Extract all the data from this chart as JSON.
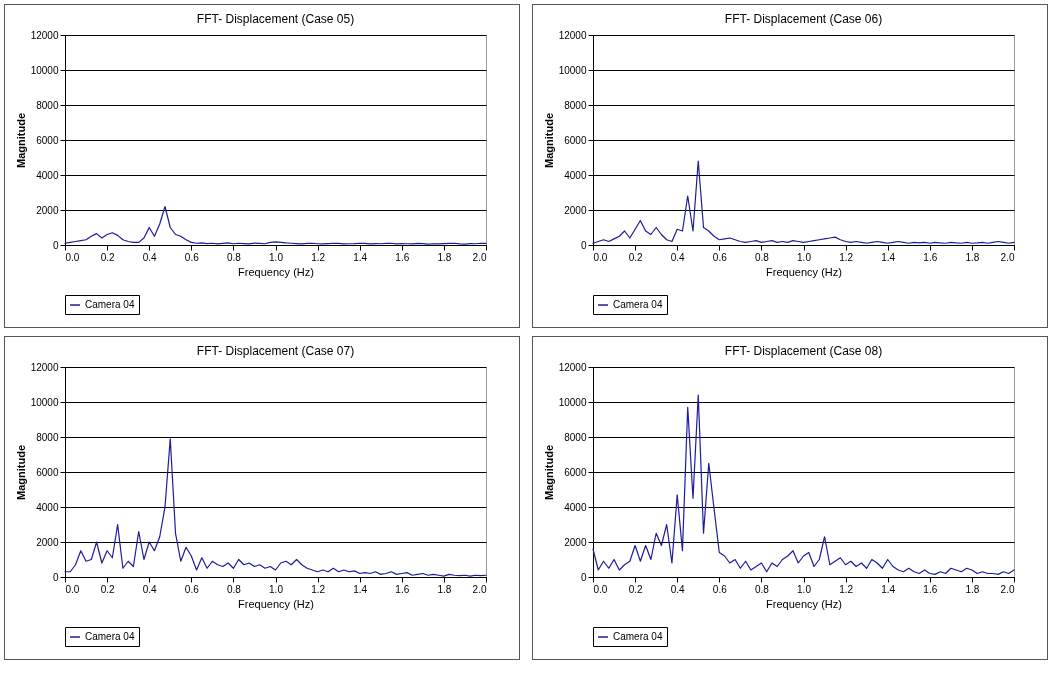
{
  "chart_data": [
    {
      "type": "line",
      "title": "FFT- Displacement (Case 05)",
      "xlabel": "Frequency (Hz)",
      "ylabel": "Magnitude",
      "xlim": [
        0,
        2
      ],
      "ylim": [
        0,
        12000
      ],
      "xticks": [
        {
          "value": 0,
          "label": "0.0"
        },
        0.2,
        0.4,
        0.6,
        0.8,
        {
          "value": 1,
          "label": "1.0"
        },
        1.2,
        1.4,
        1.6,
        1.8,
        {
          "value": 2,
          "label": "2.0"
        }
      ],
      "yticks": [
        0,
        2000,
        4000,
        6000,
        8000,
        10000,
        12000
      ],
      "grid": "y",
      "legend": "bottom",
      "marker": "none",
      "line_style": "solid",
      "x": [
        0,
        0.025,
        0.05,
        0.075,
        0.1,
        0.125,
        0.15,
        0.175,
        0.2,
        0.225,
        0.25,
        0.275,
        0.3,
        0.325,
        0.35,
        0.375,
        0.4,
        0.425,
        0.45,
        0.475,
        0.5,
        0.525,
        0.55,
        0.575,
        0.6,
        0.625,
        0.65,
        0.675,
        0.7,
        0.725,
        0.75,
        0.775,
        0.8,
        0.825,
        0.85,
        0.875,
        0.9,
        0.925,
        0.95,
        0.975,
        1,
        1.025,
        1.05,
        1.075,
        1.1,
        1.125,
        1.15,
        1.175,
        1.2,
        1.225,
        1.25,
        1.275,
        1.3,
        1.325,
        1.35,
        1.375,
        1.4,
        1.425,
        1.45,
        1.475,
        1.5,
        1.525,
        1.55,
        1.575,
        1.6,
        1.625,
        1.65,
        1.675,
        1.7,
        1.725,
        1.75,
        1.775,
        1.8,
        1.825,
        1.85,
        1.875,
        1.9,
        1.925,
        1.95,
        1.975,
        2
      ],
      "series": [
        {
          "name": "Camera 04",
          "color": "#1c1c9c",
          "values": [
            100,
            150,
            200,
            250,
            300,
            500,
            650,
            400,
            600,
            700,
            550,
            300,
            200,
            150,
            150,
            400,
            1000,
            500,
            1200,
            2200,
            1000,
            600,
            500,
            300,
            150,
            100,
            120,
            80,
            100,
            60,
            90,
            120,
            70,
            100,
            80,
            60,
            110,
            90,
            70,
            150,
            180,
            150,
            120,
            100,
            80,
            60,
            90,
            100,
            70,
            60,
            80,
            100,
            90,
            60,
            70,
            80,
            100,
            90,
            60,
            80,
            70,
            90,
            100,
            60,
            80,
            70,
            60,
            90,
            80,
            50,
            70,
            60,
            80,
            90,
            100,
            60,
            50,
            80,
            70,
            100,
            90
          ]
        }
      ]
    },
    {
      "type": "line",
      "title": "FFT- Displacement (Case 06)",
      "xlabel": "Frequency (Hz)",
      "ylabel": "Magnitude",
      "xlim": [
        0,
        2
      ],
      "ylim": [
        0,
        12000
      ],
      "xticks": [
        {
          "value": 0,
          "label": "0.0"
        },
        0.2,
        0.4,
        0.6,
        0.8,
        {
          "value": 1,
          "label": "1.0"
        },
        1.2,
        1.4,
        1.6,
        1.8,
        {
          "value": 2,
          "label": "2.0"
        }
      ],
      "yticks": [
        0,
        2000,
        4000,
        6000,
        8000,
        10000,
        12000
      ],
      "grid": "y",
      "legend": "bottom",
      "marker": "none",
      "line_style": "solid",
      "x": [
        0,
        0.025,
        0.05,
        0.075,
        0.1,
        0.125,
        0.15,
        0.175,
        0.2,
        0.225,
        0.25,
        0.275,
        0.3,
        0.325,
        0.35,
        0.375,
        0.4,
        0.425,
        0.45,
        0.475,
        0.5,
        0.525,
        0.55,
        0.575,
        0.6,
        0.625,
        0.65,
        0.675,
        0.7,
        0.725,
        0.75,
        0.775,
        0.8,
        0.825,
        0.85,
        0.875,
        0.9,
        0.925,
        0.95,
        0.975,
        1,
        1.025,
        1.05,
        1.075,
        1.1,
        1.125,
        1.15,
        1.175,
        1.2,
        1.225,
        1.25,
        1.275,
        1.3,
        1.325,
        1.35,
        1.375,
        1.4,
        1.425,
        1.45,
        1.475,
        1.5,
        1.525,
        1.55,
        1.575,
        1.6,
        1.625,
        1.65,
        1.675,
        1.7,
        1.725,
        1.75,
        1.775,
        1.8,
        1.825,
        1.85,
        1.875,
        1.9,
        1.925,
        1.95,
        1.975,
        2
      ],
      "series": [
        {
          "name": "Camera 04",
          "color": "#1c1c9c",
          "values": [
            100,
            200,
            300,
            200,
            350,
            500,
            800,
            400,
            900,
            1400,
            800,
            600,
            1000,
            600,
            300,
            200,
            900,
            800,
            2800,
            800,
            4800,
            1000,
            800,
            500,
            300,
            350,
            400,
            300,
            200,
            150,
            200,
            250,
            150,
            200,
            250,
            150,
            200,
            150,
            250,
            200,
            150,
            200,
            250,
            300,
            350,
            400,
            450,
            300,
            200,
            150,
            200,
            150,
            100,
            150,
            200,
            150,
            100,
            150,
            200,
            150,
            100,
            150,
            120,
            150,
            100,
            150,
            120,
            100,
            150,
            120,
            100,
            150,
            100,
            120,
            150,
            100,
            150,
            200,
            150,
            100,
            150
          ]
        }
      ]
    },
    {
      "type": "line",
      "title": "FFT- Displacement (Case 07)",
      "xlabel": "Frequency (Hz)",
      "ylabel": "Magnitude",
      "xlim": [
        0,
        2
      ],
      "ylim": [
        0,
        12000
      ],
      "xticks": [
        {
          "value": 0,
          "label": "0.0"
        },
        0.2,
        0.4,
        0.6,
        0.8,
        {
          "value": 1,
          "label": "1.0"
        },
        1.2,
        1.4,
        1.6,
        1.8,
        {
          "value": 2,
          "label": "2.0"
        }
      ],
      "yticks": [
        0,
        2000,
        4000,
        6000,
        8000,
        10000,
        12000
      ],
      "grid": "y",
      "legend": "bottom",
      "marker": "none",
      "line_style": "solid",
      "x": [
        0,
        0.025,
        0.05,
        0.075,
        0.1,
        0.125,
        0.15,
        0.175,
        0.2,
        0.225,
        0.25,
        0.275,
        0.3,
        0.325,
        0.35,
        0.375,
        0.4,
        0.425,
        0.45,
        0.475,
        0.5,
        0.525,
        0.55,
        0.575,
        0.6,
        0.625,
        0.65,
        0.675,
        0.7,
        0.725,
        0.75,
        0.775,
        0.8,
        0.825,
        0.85,
        0.875,
        0.9,
        0.925,
        0.95,
        0.975,
        1,
        1.025,
        1.05,
        1.075,
        1.1,
        1.125,
        1.15,
        1.175,
        1.2,
        1.225,
        1.25,
        1.275,
        1.3,
        1.325,
        1.35,
        1.375,
        1.4,
        1.425,
        1.45,
        1.475,
        1.5,
        1.525,
        1.55,
        1.575,
        1.6,
        1.625,
        1.65,
        1.675,
        1.7,
        1.725,
        1.75,
        1.775,
        1.8,
        1.825,
        1.85,
        1.875,
        1.9,
        1.925,
        1.95,
        1.975,
        2
      ],
      "series": [
        {
          "name": "Camera 04",
          "color": "#1c1c9c",
          "values": [
            300,
            300,
            700,
            1500,
            900,
            1000,
            2000,
            800,
            1500,
            1100,
            3000,
            500,
            900,
            600,
            2600,
            1000,
            2000,
            1500,
            2300,
            4000,
            7900,
            2500,
            900,
            1700,
            1200,
            400,
            1100,
            500,
            900,
            700,
            600,
            800,
            500,
            1000,
            700,
            800,
            600,
            700,
            500,
            600,
            400,
            800,
            900,
            700,
            1000,
            700,
            500,
            400,
            300,
            400,
            300,
            500,
            300,
            400,
            300,
            350,
            200,
            250,
            200,
            300,
            150,
            200,
            300,
            150,
            200,
            250,
            100,
            150,
            200,
            100,
            150,
            100,
            50,
            150,
            100,
            80,
            100,
            50,
            100,
            80,
            100
          ]
        }
      ]
    },
    {
      "type": "line",
      "title": "FFT- Displacement (Case 08)",
      "xlabel": "Frequency (Hz)",
      "ylabel": "Magnitude",
      "xlim": [
        0,
        2
      ],
      "ylim": [
        0,
        12000
      ],
      "xticks": [
        {
          "value": 0,
          "label": "0.0"
        },
        0.2,
        0.4,
        0.6,
        0.8,
        {
          "value": 1,
          "label": "1.0"
        },
        1.2,
        1.4,
        1.6,
        1.8,
        {
          "value": 2,
          "label": "2.0"
        }
      ],
      "yticks": [
        0,
        2000,
        4000,
        6000,
        8000,
        10000,
        12000
      ],
      "grid": "y",
      "legend": "bottom",
      "marker": "none",
      "line_style": "solid",
      "x": [
        0,
        0.025,
        0.05,
        0.075,
        0.1,
        0.125,
        0.15,
        0.175,
        0.2,
        0.225,
        0.25,
        0.275,
        0.3,
        0.325,
        0.35,
        0.375,
        0.4,
        0.425,
        0.45,
        0.475,
        0.5,
        0.525,
        0.55,
        0.575,
        0.6,
        0.625,
        0.65,
        0.675,
        0.7,
        0.725,
        0.75,
        0.775,
        0.8,
        0.825,
        0.85,
        0.875,
        0.9,
        0.925,
        0.95,
        0.975,
        1,
        1.025,
        1.05,
        1.075,
        1.1,
        1.125,
        1.15,
        1.175,
        1.2,
        1.225,
        1.25,
        1.275,
        1.3,
        1.325,
        1.35,
        1.375,
        1.4,
        1.425,
        1.45,
        1.475,
        1.5,
        1.525,
        1.55,
        1.575,
        1.6,
        1.625,
        1.65,
        1.675,
        1.7,
        1.725,
        1.75,
        1.775,
        1.8,
        1.825,
        1.85,
        1.875,
        1.9,
        1.925,
        1.95,
        1.975,
        2
      ],
      "series": [
        {
          "name": "Camera 04",
          "color": "#1c1c9c",
          "values": [
            1600,
            400,
            900,
            500,
            1000,
            400,
            700,
            900,
            1800,
            900,
            1800,
            1000,
            2500,
            1800,
            3000,
            800,
            4700,
            1500,
            9700,
            4500,
            10400,
            2500,
            6500,
            3900,
            1400,
            1200,
            800,
            1000,
            500,
            900,
            400,
            600,
            800,
            300,
            800,
            600,
            1000,
            1200,
            1500,
            800,
            1200,
            1400,
            600,
            1000,
            2300,
            700,
            900,
            1100,
            700,
            900,
            600,
            800,
            500,
            1000,
            800,
            500,
            1000,
            600,
            400,
            300,
            500,
            300,
            200,
            400,
            200,
            150,
            300,
            200,
            500,
            400,
            300,
            500,
            400,
            200,
            300,
            200,
            200,
            150,
            300,
            200,
            400
          ]
        }
      ]
    }
  ]
}
